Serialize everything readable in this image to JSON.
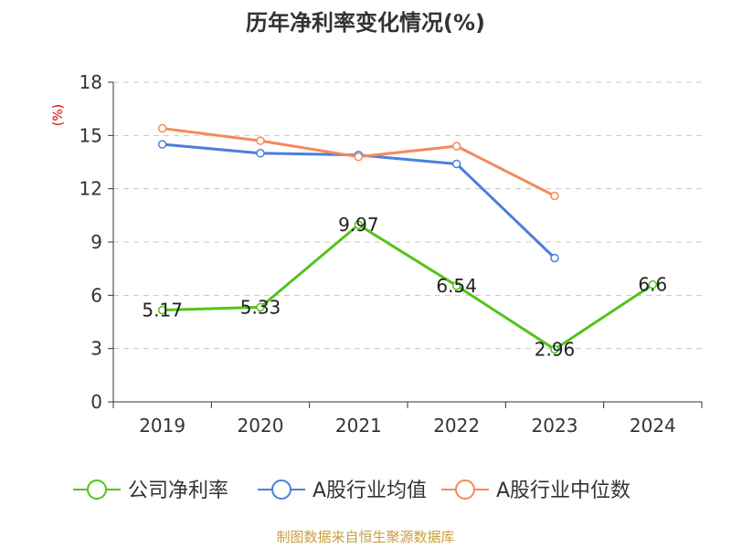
{
  "chart_data": {
    "type": "line",
    "title": "历年净利率变化情况(%)",
    "ylabel": "(%)",
    "xlabel": "",
    "categories": [
      "2019",
      "2020",
      "2021",
      "2022",
      "2023",
      "2024"
    ],
    "ylim": [
      0,
      18
    ],
    "yticks": [
      0,
      3,
      6,
      9,
      12,
      15,
      18
    ],
    "grid": true,
    "legend_position": "bottom",
    "series": [
      {
        "name": "公司净利率",
        "color": "#52c41a",
        "values": [
          5.17,
          5.33,
          9.97,
          6.54,
          2.96,
          6.6
        ],
        "labels": [
          "5.17",
          "5.33",
          "9.97",
          "6.54",
          "2.96",
          "6.6"
        ]
      },
      {
        "name": "A股行业均值",
        "color": "#4a7fdc",
        "values": [
          14.5,
          14.0,
          13.9,
          13.4,
          8.1,
          null
        ]
      },
      {
        "name": "A股行业中位数",
        "color": "#f5895a",
        "values": [
          15.4,
          14.7,
          13.8,
          14.4,
          11.6,
          null
        ]
      }
    ],
    "source": "制图数据来自恒生聚源数据库",
    "colors": {
      "axis": "#333333",
      "grid": "#c8c8c8",
      "ylabel": "#cc0000",
      "source": "#c8a040"
    }
  }
}
